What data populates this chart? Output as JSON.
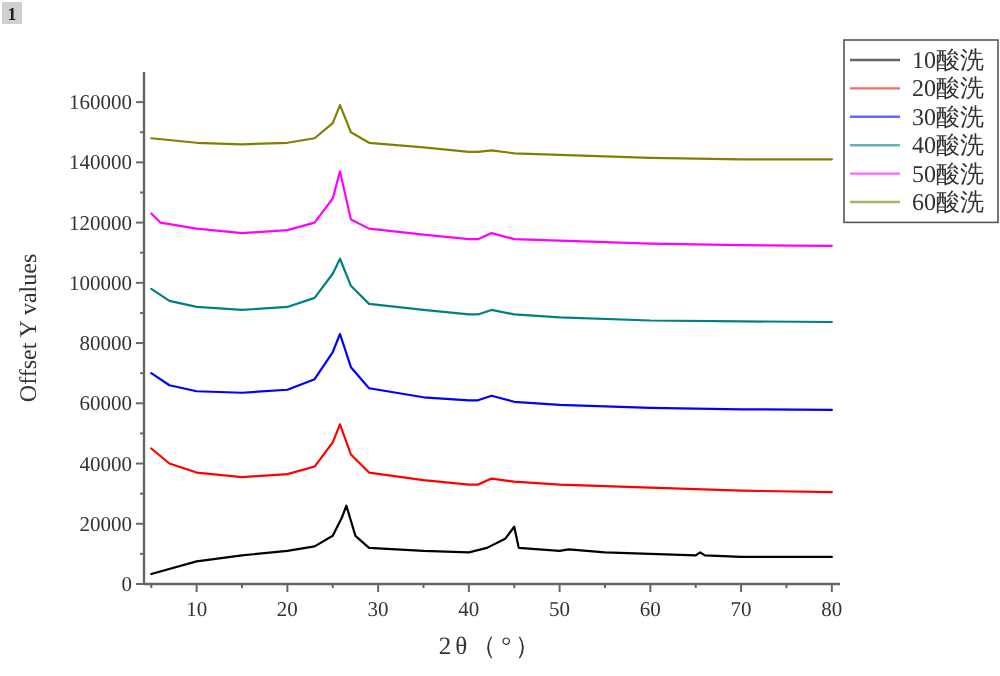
{
  "chart_data": {
    "type": "line",
    "xlabel": "2θ（°）",
    "ylabel": "Offset Y values",
    "annotations": [
      "1"
    ],
    "xlim": [
      4.2,
      80.9
    ],
    "xticks": [
      10,
      20,
      30,
      40,
      50,
      60,
      70,
      80
    ],
    "ylim": [
      0,
      170000
    ],
    "yticks": [
      0,
      20000,
      40000,
      60000,
      80000,
      100000,
      120000,
      140000,
      160000
    ],
    "legend": "top right",
    "grid": false,
    "marker": "none",
    "line_style": "solid",
    "series": [
      {
        "name": "10酸洗",
        "color": "#000000",
        "x": [
          5,
          10,
          15,
          20,
          23,
          25,
          26,
          26.5,
          27.5,
          29,
          35,
          40,
          42,
          44,
          45,
          45.5,
          50,
          51,
          55,
          60,
          65,
          65.5,
          66,
          70,
          75,
          80
        ],
        "values": [
          3300,
          7500,
          9500,
          11000,
          12500,
          16000,
          22000,
          26000,
          16000,
          12000,
          11000,
          10500,
          12000,
          15000,
          19000,
          12000,
          11000,
          11500,
          10500,
          10000,
          9500,
          10500,
          9500,
          9000,
          9000,
          9000
        ]
      },
      {
        "name": "20酸洗",
        "color": "#ff0000",
        "x": [
          5,
          7,
          10,
          15,
          20,
          23,
          25,
          25.8,
          27,
          29,
          35,
          40,
          41,
          42.5,
          45,
          50,
          60,
          70,
          80
        ],
        "values": [
          45000,
          40000,
          37000,
          35500,
          36500,
          39000,
          47000,
          53000,
          43000,
          37000,
          34500,
          33000,
          33000,
          35000,
          34000,
          33000,
          32000,
          31000,
          30500
        ]
      },
      {
        "name": "30酸洗",
        "color": "#0000ff",
        "x": [
          5,
          7,
          10,
          15,
          20,
          23,
          25,
          25.8,
          27,
          29,
          35,
          40,
          41,
          42.5,
          45,
          50,
          60,
          70,
          80
        ],
        "values": [
          70000,
          66000,
          64000,
          63500,
          64500,
          68000,
          77000,
          83000,
          72000,
          65000,
          62000,
          61000,
          61000,
          62500,
          60500,
          59500,
          58500,
          58000,
          57800
        ]
      },
      {
        "name": "40酸洗",
        "color": "#008080",
        "x": [
          5,
          7,
          10,
          15,
          20,
          23,
          25,
          25.8,
          27,
          29,
          35,
          40,
          41,
          42.5,
          45,
          50,
          60,
          70,
          80
        ],
        "values": [
          98000,
          94000,
          92000,
          91000,
          92000,
          95000,
          103000,
          108000,
          99000,
          93000,
          91000,
          89500,
          89500,
          91000,
          89500,
          88500,
          87500,
          87200,
          87000
        ]
      },
      {
        "name": "50酸洗",
        "color": "#ff00ff",
        "x": [
          5,
          6,
          10,
          15,
          20,
          23,
          25,
          25.8,
          27,
          29,
          35,
          40,
          41,
          42.5,
          45,
          50,
          60,
          70,
          80
        ],
        "values": [
          123000,
          120000,
          118000,
          116500,
          117500,
          120000,
          128000,
          137000,
          121000,
          118000,
          116000,
          114500,
          114500,
          116500,
          114500,
          114000,
          113000,
          112500,
          112300
        ]
      },
      {
        "name": "60酸洗",
        "color": "#808000",
        "x": [
          5,
          10,
          15,
          20,
          23,
          25,
          25.8,
          27,
          29,
          35,
          40,
          41,
          42.5,
          45,
          50,
          60,
          70,
          80
        ],
        "values": [
          148000,
          146500,
          146000,
          146500,
          148000,
          153000,
          159000,
          150000,
          146500,
          145000,
          143500,
          143500,
          144000,
          143000,
          142500,
          141500,
          141000,
          141000
        ]
      }
    ]
  }
}
